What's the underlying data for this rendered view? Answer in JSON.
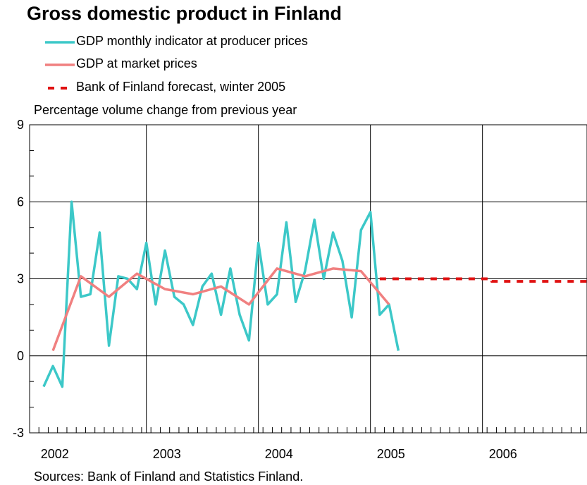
{
  "chart_data": {
    "type": "line",
    "title": "Gross domestic product in Finland",
    "ylabel": "Percentage volume change from previous year",
    "xlabel": "",
    "ylim": [
      -3,
      9
    ],
    "yticks": [
      "9",
      "6",
      "3",
      "0",
      "-3"
    ],
    "xticks": [
      "2002",
      "2003",
      "2004",
      "2005",
      "2006"
    ],
    "grid": true,
    "legend_position": "top-left",
    "source": "Sources: Bank of Finland and Statistics Finland.",
    "series": [
      {
        "name": "GDP monthly indicator at producer prices",
        "color": "#3cc8c8",
        "style": "solid",
        "points": [
          [
            2002.0,
            -1.2
          ],
          [
            2002.083,
            -0.4
          ],
          [
            2002.167,
            -1.2
          ],
          [
            2002.25,
            6.0
          ],
          [
            2002.333,
            2.3
          ],
          [
            2002.417,
            2.4
          ],
          [
            2002.5,
            4.8
          ],
          [
            2002.583,
            0.4
          ],
          [
            2002.667,
            3.1
          ],
          [
            2002.75,
            3.0
          ],
          [
            2002.833,
            2.6
          ],
          [
            2002.917,
            4.4
          ],
          [
            2003.0,
            2.0
          ],
          [
            2003.083,
            4.1
          ],
          [
            2003.167,
            2.3
          ],
          [
            2003.25,
            2.0
          ],
          [
            2003.333,
            1.2
          ],
          [
            2003.417,
            2.7
          ],
          [
            2003.5,
            3.2
          ],
          [
            2003.583,
            1.6
          ],
          [
            2003.667,
            3.4
          ],
          [
            2003.75,
            1.6
          ],
          [
            2003.833,
            0.6
          ],
          [
            2003.917,
            4.4
          ],
          [
            2004.0,
            2.0
          ],
          [
            2004.083,
            2.4
          ],
          [
            2004.167,
            5.2
          ],
          [
            2004.25,
            2.1
          ],
          [
            2004.333,
            3.3
          ],
          [
            2004.417,
            5.3
          ],
          [
            2004.5,
            3.0
          ],
          [
            2004.583,
            4.8
          ],
          [
            2004.667,
            3.7
          ],
          [
            2004.75,
            1.5
          ],
          [
            2004.833,
            4.9
          ],
          [
            2004.917,
            5.6
          ],
          [
            2005.0,
            1.6
          ],
          [
            2005.083,
            2.0
          ],
          [
            2005.167,
            0.2
          ]
        ]
      },
      {
        "name": "GDP at market prices",
        "color": "#f08080",
        "style": "solid",
        "points": [
          [
            2002.083,
            0.2
          ],
          [
            2002.333,
            3.1
          ],
          [
            2002.583,
            2.3
          ],
          [
            2002.833,
            3.2
          ],
          [
            2003.083,
            2.6
          ],
          [
            2003.333,
            2.4
          ],
          [
            2003.583,
            2.7
          ],
          [
            2003.833,
            2.0
          ],
          [
            2004.083,
            3.4
          ],
          [
            2004.333,
            3.1
          ],
          [
            2004.583,
            3.4
          ],
          [
            2004.833,
            3.3
          ],
          [
            2005.083,
            2.0
          ]
        ]
      },
      {
        "name": "Bank of Finland forecast, winter 2005",
        "color": "#e01010",
        "style": "dashed",
        "points": [
          [
            2005.0,
            3.0
          ],
          [
            2006.0,
            3.0
          ],
          [
            2006.0,
            2.9
          ],
          [
            2007.0,
            2.9
          ]
        ]
      }
    ]
  }
}
